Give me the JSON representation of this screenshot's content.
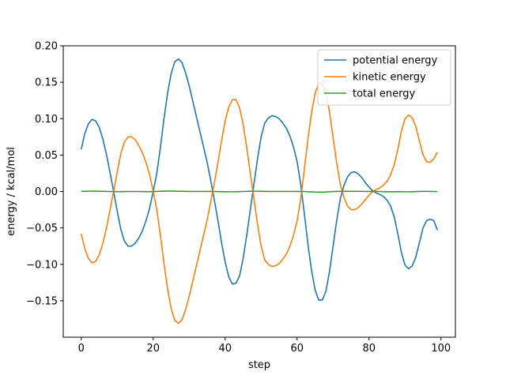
{
  "chart_data": {
    "type": "line",
    "title": "",
    "xlabel": "step",
    "ylabel": "energy / kcal/mol",
    "xlim": [
      -5,
      104
    ],
    "ylim": [
      -0.2,
      0.2
    ],
    "xticks": [
      0,
      20,
      40,
      60,
      80,
      100
    ],
    "yticks": [
      -0.15,
      -0.1,
      -0.05,
      0.0,
      0.05,
      0.1,
      0.15,
      0.2
    ],
    "ytick_labels": [
      "−0.15",
      "−0.10",
      "−0.05",
      "0.00",
      "0.05",
      "0.10",
      "0.15",
      "0.20"
    ],
    "grid": false,
    "legend_position": "top-right",
    "series": [
      {
        "name": "potential energy",
        "color": "#1f77b4",
        "x": [
          0,
          1,
          2,
          3,
          4,
          5,
          6,
          7,
          8,
          9,
          10,
          11,
          12,
          13,
          14,
          15,
          16,
          17,
          18,
          19,
          20,
          21,
          22,
          23,
          24,
          25,
          26,
          27,
          28,
          29,
          30,
          31,
          32,
          33,
          34,
          35,
          36,
          37,
          38,
          39,
          40,
          41,
          42,
          43,
          44,
          45,
          46,
          47,
          48,
          49,
          50,
          51,
          52,
          53,
          54,
          55,
          56,
          57,
          58,
          59,
          60,
          61,
          62,
          63,
          64,
          65,
          66,
          67,
          68,
          69,
          70,
          71,
          72,
          73,
          74,
          75,
          76,
          77,
          78,
          79,
          80,
          81,
          82,
          83,
          84,
          85,
          86,
          87,
          88,
          89,
          90,
          91,
          92,
          93,
          94,
          95,
          96,
          97,
          98,
          99
        ],
        "values": [
          0.058,
          0.08,
          0.093,
          0.099,
          0.097,
          0.088,
          0.072,
          0.051,
          0.026,
          0.0,
          -0.027,
          -0.052,
          -0.068,
          -0.075,
          -0.075,
          -0.071,
          -0.064,
          -0.054,
          -0.04,
          -0.023,
          0.0,
          0.025,
          0.06,
          0.1,
          0.135,
          0.162,
          0.178,
          0.182,
          0.177,
          0.163,
          0.145,
          0.124,
          0.103,
          0.082,
          0.061,
          0.04,
          0.015,
          -0.012,
          -0.04,
          -0.07,
          -0.097,
          -0.117,
          -0.127,
          -0.126,
          -0.116,
          -0.092,
          -0.06,
          -0.025,
          0.01,
          0.045,
          0.075,
          0.094,
          0.101,
          0.104,
          0.103,
          0.1,
          0.094,
          0.087,
          0.076,
          0.061,
          0.041,
          0.01,
          -0.03,
          -0.072,
          -0.108,
          -0.135,
          -0.149,
          -0.149,
          -0.137,
          -0.11,
          -0.075,
          -0.04,
          -0.01,
          0.008,
          0.02,
          0.026,
          0.027,
          0.024,
          0.019,
          0.012,
          0.006,
          0.001,
          -0.002,
          -0.004,
          -0.007,
          -0.012,
          -0.02,
          -0.035,
          -0.058,
          -0.084,
          -0.101,
          -0.106,
          -0.102,
          -0.09,
          -0.07,
          -0.05,
          -0.04,
          -0.038,
          -0.04,
          -0.053
        ]
      },
      {
        "name": "kinetic energy",
        "color": "#ff7f0e",
        "x": [
          0,
          1,
          2,
          3,
          4,
          5,
          6,
          7,
          8,
          9,
          10,
          11,
          12,
          13,
          14,
          15,
          16,
          17,
          18,
          19,
          20,
          21,
          22,
          23,
          24,
          25,
          26,
          27,
          28,
          29,
          30,
          31,
          32,
          33,
          34,
          35,
          36,
          37,
          38,
          39,
          40,
          41,
          42,
          43,
          44,
          45,
          46,
          47,
          48,
          49,
          50,
          51,
          52,
          53,
          54,
          55,
          56,
          57,
          58,
          59,
          60,
          61,
          62,
          63,
          64,
          65,
          66,
          67,
          68,
          69,
          70,
          71,
          72,
          73,
          74,
          75,
          76,
          77,
          78,
          79,
          80,
          81,
          82,
          83,
          84,
          85,
          86,
          87,
          88,
          89,
          90,
          91,
          92,
          93,
          94,
          95,
          96,
          97,
          98,
          99
        ],
        "values": [
          -0.058,
          -0.079,
          -0.092,
          -0.098,
          -0.096,
          -0.087,
          -0.071,
          -0.05,
          -0.025,
          0.0,
          0.027,
          0.052,
          0.068,
          0.075,
          0.075,
          0.071,
          0.063,
          0.053,
          0.04,
          0.023,
          0.0,
          -0.025,
          -0.06,
          -0.099,
          -0.134,
          -0.161,
          -0.177,
          -0.181,
          -0.176,
          -0.162,
          -0.144,
          -0.123,
          -0.102,
          -0.081,
          -0.06,
          -0.039,
          -0.014,
          0.012,
          0.04,
          0.07,
          0.097,
          0.116,
          0.126,
          0.126,
          0.115,
          0.092,
          0.06,
          0.025,
          -0.01,
          -0.045,
          -0.075,
          -0.094,
          -0.1,
          -0.103,
          -0.102,
          -0.099,
          -0.093,
          -0.086,
          -0.075,
          -0.06,
          -0.04,
          -0.01,
          0.03,
          0.072,
          0.108,
          0.135,
          0.148,
          0.148,
          0.136,
          0.109,
          0.074,
          0.039,
          0.01,
          -0.008,
          -0.02,
          -0.025,
          -0.025,
          -0.022,
          -0.017,
          -0.011,
          -0.005,
          0.0,
          0.003,
          0.005,
          0.009,
          0.014,
          0.023,
          0.037,
          0.058,
          0.083,
          0.1,
          0.105,
          0.101,
          0.089,
          0.069,
          0.05,
          0.041,
          0.04,
          0.045,
          0.054
        ]
      },
      {
        "name": "total energy",
        "color": "#2ca02c",
        "x": [
          0,
          1,
          2,
          3,
          4,
          5,
          6,
          7,
          8,
          9,
          10,
          11,
          12,
          13,
          14,
          15,
          16,
          17,
          18,
          19,
          20,
          21,
          22,
          23,
          24,
          25,
          26,
          27,
          28,
          29,
          30,
          31,
          32,
          33,
          34,
          35,
          36,
          37,
          38,
          39,
          40,
          41,
          42,
          43,
          44,
          45,
          46,
          47,
          48,
          49,
          50,
          51,
          52,
          53,
          54,
          55,
          56,
          57,
          58,
          59,
          60,
          61,
          62,
          63,
          64,
          65,
          66,
          67,
          68,
          69,
          70,
          71,
          72,
          73,
          74,
          75,
          76,
          77,
          78,
          79,
          80,
          81,
          82,
          83,
          84,
          85,
          86,
          87,
          88,
          89,
          90,
          91,
          92,
          93,
          94,
          95,
          96,
          97,
          98,
          99
        ],
        "values": [
          0.0002,
          0.0003,
          0.0004,
          0.0005,
          0.0005,
          0.0004,
          0.0003,
          0.0001,
          0.0,
          -0.0001,
          -0.0002,
          -0.0002,
          -0.0001,
          0.0,
          0.0,
          0.0,
          0.0,
          -0.0001,
          -0.0002,
          -0.0002,
          -0.0001,
          0.0001,
          0.0003,
          0.0005,
          0.0006,
          0.0006,
          0.0005,
          0.0004,
          0.0003,
          0.0002,
          0.0001,
          0.0001,
          0.0001,
          0.0001,
          0.0001,
          0.0001,
          0.0001,
          0.0,
          -0.0001,
          -0.0002,
          -0.0003,
          -0.0004,
          -0.0004,
          -0.0003,
          -0.0002,
          0.0,
          0.0002,
          0.0003,
          0.0004,
          0.0004,
          0.0003,
          0.0002,
          0.0001,
          0.0001,
          0.0001,
          0.0001,
          0.0001,
          0.0001,
          0.0001,
          0.0001,
          0.0001,
          0.0001,
          0.0,
          -0.0003,
          -0.0006,
          -0.0008,
          -0.0009,
          -0.0009,
          -0.0007,
          -0.0004,
          -0.0001,
          0.0001,
          0.0002,
          0.0002,
          0.0002,
          0.0002,
          0.0002,
          0.0002,
          0.0002,
          0.0001,
          0.0001,
          0.0001,
          0.0001,
          0.0,
          -0.0002,
          -0.0003,
          -0.0003,
          -0.0003,
          -0.0002,
          -0.0003,
          -0.0004,
          -0.0004,
          -0.0003,
          -0.0001,
          0.0001,
          0.0002,
          0.0002,
          0.0001,
          0.0,
          -0.0001
        ]
      }
    ]
  }
}
